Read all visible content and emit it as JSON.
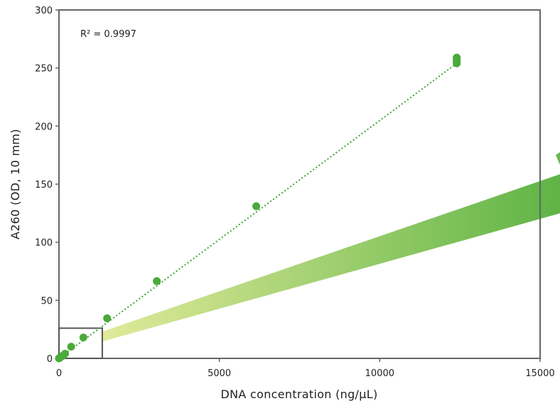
{
  "chart_data": {
    "type": "scatter",
    "title": "",
    "xlabel": "DNA concentration (ng/µL)",
    "ylabel": "A260 (OD, 10 mm)",
    "xlim": [
      0,
      15000
    ],
    "ylim": [
      0,
      300
    ],
    "x_ticks": [
      "0",
      "5000",
      "10000",
      "15000"
    ],
    "y_ticks": [
      "0",
      "50",
      "100",
      "150",
      "200",
      "250",
      "300"
    ],
    "x_tick_values": [
      0,
      5000,
      10000,
      15000
    ],
    "y_tick_values": [
      0,
      50,
      100,
      150,
      200,
      250,
      300
    ],
    "annotation": "R² = 0.9997",
    "grid": false,
    "colors": {
      "points": "#4aaa3a",
      "trendline": "#3fa535",
      "box": "#555555",
      "gradient_start": "#e0ea9a",
      "gradient_end": "#5fb446"
    },
    "series": [
      {
        "points": [
          [
            0,
            0.0
          ],
          [
            12,
            0.3
          ],
          [
            25,
            0.5
          ],
          [
            50,
            1.0
          ],
          [
            100,
            2.0
          ],
          [
            190,
            4.0
          ],
          [
            380,
            10.0
          ],
          [
            760,
            18.0
          ],
          [
            1500,
            34.5
          ],
          [
            3050,
            66.5
          ],
          [
            6150,
            131.0
          ],
          [
            12400,
            254.0
          ],
          [
            12400,
            256.0
          ],
          [
            12400,
            258.0
          ],
          [
            12400,
            259.0
          ]
        ]
      }
    ],
    "trendline": {
      "x": [
        0,
        12400
      ],
      "y": [
        0,
        254
      ]
    },
    "zoom_box": {
      "x": [
        0,
        1350
      ],
      "y": [
        0,
        26
      ]
    }
  }
}
